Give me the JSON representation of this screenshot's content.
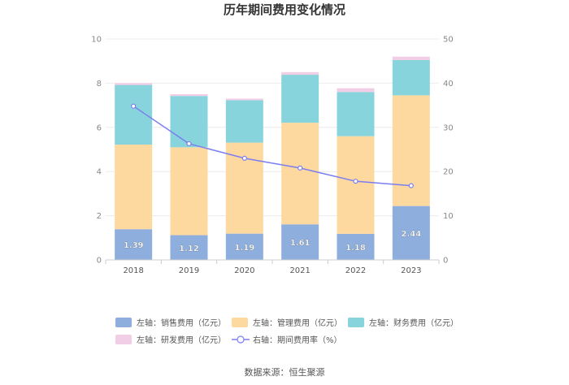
{
  "chart_data": {
    "type": "bar",
    "title": "历年期间费用变化情况",
    "categories": [
      "2018",
      "2019",
      "2020",
      "2021",
      "2022",
      "2023"
    ],
    "stacked": true,
    "left_axis": {
      "min": 0,
      "max": 10,
      "ticks": [
        "0",
        "2",
        "4",
        "6",
        "8",
        "10"
      ]
    },
    "right_axis": {
      "min": 0,
      "max": 50,
      "ticks": [
        "0",
        "10",
        "20",
        "30",
        "40",
        "50"
      ]
    },
    "series": [
      {
        "name": "左轴：销售费用（亿元）",
        "axis": "left",
        "color": "#8eaedd",
        "values": [
          1.39,
          1.12,
          1.19,
          1.61,
          1.18,
          2.44
        ],
        "labels": [
          "1.39",
          "1.12",
          "1.19",
          "1.61",
          "1.18",
          "2.44"
        ]
      },
      {
        "name": "左轴：管理费用（亿元）",
        "axis": "left",
        "color": "#fdd9a0",
        "values": [
          3.83,
          3.98,
          4.12,
          4.6,
          4.42,
          5.01
        ]
      },
      {
        "name": "左轴：财务费用（亿元）",
        "axis": "left",
        "color": "#88d4dc",
        "values": [
          2.7,
          2.32,
          1.92,
          2.17,
          2.0,
          1.6
        ]
      },
      {
        "name": "左轴：研发费用（亿元）",
        "axis": "left",
        "color": "#f2cde6",
        "values": [
          0.08,
          0.08,
          0.07,
          0.12,
          0.17,
          0.15
        ]
      },
      {
        "name": "右轴：期间费用率（%）",
        "axis": "right",
        "type": "line",
        "color": "#7b7ef0",
        "values": [
          34.8,
          26.3,
          23.0,
          20.8,
          17.8,
          16.8
        ]
      }
    ],
    "legend_position": "bottom",
    "grid": true
  },
  "source": "数据来源：恒生聚源"
}
